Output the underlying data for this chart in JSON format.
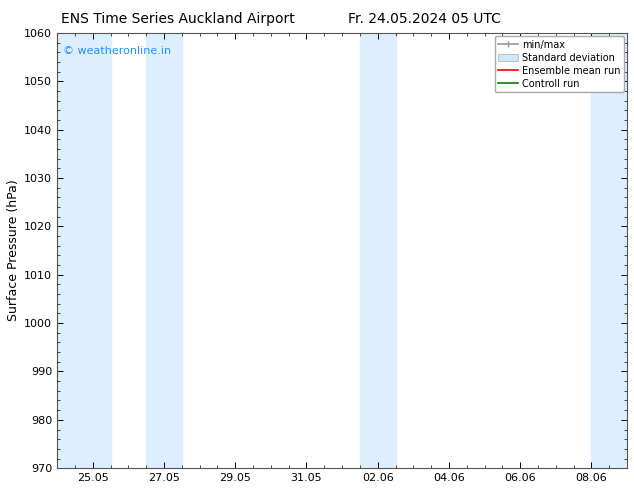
{
  "title_left": "ENS Time Series Auckland Airport",
  "title_right": "Fr. 24.05.2024 05 UTC",
  "ylabel": "Surface Pressure (hPa)",
  "ylim": [
    970,
    1060
  ],
  "yticks": [
    970,
    980,
    990,
    1000,
    1010,
    1020,
    1030,
    1040,
    1050,
    1060
  ],
  "xtick_labels": [
    "25.05",
    "27.05",
    "29.05",
    "31.05",
    "02.06",
    "04.06",
    "06.06",
    "08.06"
  ],
  "xtick_positions": [
    1,
    3,
    5,
    7,
    9,
    11,
    13,
    15
  ],
  "xlim": [
    0,
    16
  ],
  "shade_bands": [
    {
      "x_start": 0,
      "x_end": 1.5,
      "color": "#ddeeff"
    },
    {
      "x_start": 2.5,
      "x_end": 3.5,
      "color": "#ddeeff"
    },
    {
      "x_start": 8.5,
      "x_end": 9.5,
      "color": "#ddeeff"
    },
    {
      "x_start": 15.0,
      "x_end": 16.0,
      "color": "#ddeeff"
    }
  ],
  "background_color": "#ffffff",
  "plot_bg_color": "#ffffff",
  "watermark_text": "© weatheronline.in",
  "watermark_color": "#1e90ff",
  "legend_labels": [
    "min/max",
    "Standard deviation",
    "Ensemble mean run",
    "Controll run"
  ],
  "legend_colors": [
    "#aaaaaa",
    "#c5d8e8",
    "#ff0000",
    "#008000"
  ],
  "title_fontsize": 10,
  "tick_fontsize": 8,
  "ylabel_fontsize": 9
}
